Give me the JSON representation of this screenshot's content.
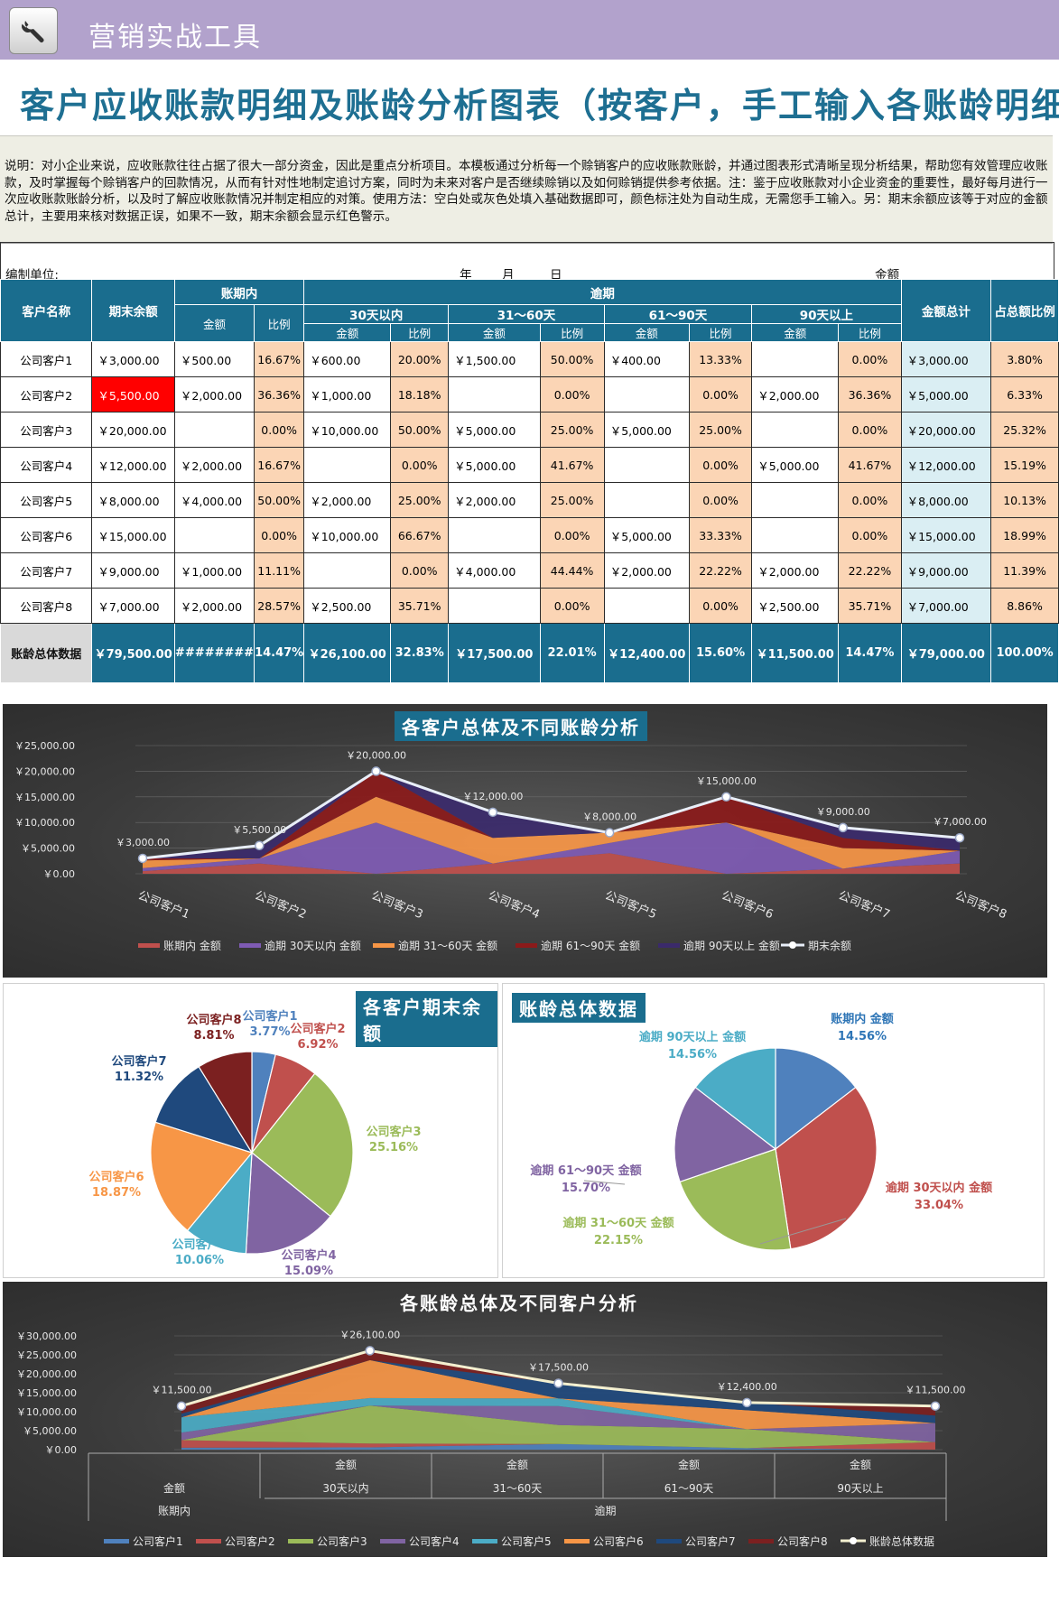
{
  "header": {
    "app_title": "营销实战工具",
    "app_icon": "wrench-icon"
  },
  "page_title": "客户应收账款明细及账龄分析图表（按客户，手工输入各账龄明细）",
  "description": "说明：对小企业来说，应收账款往往占据了很大一部分资金，因此是重点分析项目。本模板通过分析每一个赊销客户的应收账款账龄，并通过图表形式清晰呈现分析结果，帮助您有效管理应收账款，及时掌握每个赊销客户的回款情况，从而有针对性地制定追讨方案，同时为未来对客户是否继续赊销以及如何赊销提供参考依据。注：鉴于应收账款对小企业资金的重要性，最好每月进行一次应收账款账龄分析，以及时了解应收账款情况并制定相应的对策。使用方法：空白处或灰色处填入基础数据即可，颜色标注处为自动生成，无需您手工输入。另：期末余额应该等于对应的金额总计，主要用来核对数据正误，如果不一致，期末余额会显示红色警示。",
  "unit_row": {
    "unit_label": "编制单位:",
    "year": "年",
    "month": "月",
    "day": "日",
    "amount_label": "金额"
  },
  "table": {
    "headers": {
      "customer": "客户名称",
      "ending_balance": "期末余额",
      "in_period": "账期内",
      "overdue": "逾期",
      "b1": "30天以内",
      "b2": "31～60天",
      "b3": "61～90天",
      "b4": "90天以上",
      "amount": "金额",
      "ratio": "比例",
      "total": "金额总计",
      "share": "占总额比例"
    },
    "rows": [
      {
        "name": "公司客户1",
        "bal": "￥3,000.00",
        "a0": "￥500.00",
        "p0": "16.67%",
        "a1": "￥600.00",
        "p1": "20.00%",
        "a2": "￥1,500.00",
        "p2": "50.00%",
        "a3": "￥400.00",
        "p3": "13.33%",
        "a4": "",
        "p4": "0.00%",
        "tot": "￥3,000.00",
        "sh": "3.80%"
      },
      {
        "name": "公司客户2",
        "bal": "￥5,500.00",
        "a0": "￥2,000.00",
        "p0": "36.36%",
        "a1": "￥1,000.00",
        "p1": "18.18%",
        "a2": "",
        "p2": "0.00%",
        "a3": "",
        "p3": "0.00%",
        "a4": "￥2,000.00",
        "p4": "36.36%",
        "tot": "￥5,000.00",
        "sh": "6.33%"
      },
      {
        "name": "公司客户3",
        "bal": "￥20,000.00",
        "a0": "",
        "p0": "0.00%",
        "a1": "￥10,000.00",
        "p1": "50.00%",
        "a2": "￥5,000.00",
        "p2": "25.00%",
        "a3": "￥5,000.00",
        "p3": "25.00%",
        "a4": "",
        "p4": "0.00%",
        "tot": "￥20,000.00",
        "sh": "25.32%"
      },
      {
        "name": "公司客户4",
        "bal": "￥12,000.00",
        "a0": "￥2,000.00",
        "p0": "16.67%",
        "a1": "",
        "p1": "0.00%",
        "a2": "￥5,000.00",
        "p2": "41.67%",
        "a3": "",
        "p3": "0.00%",
        "a4": "￥5,000.00",
        "p4": "41.67%",
        "tot": "￥12,000.00",
        "sh": "15.19%"
      },
      {
        "name": "公司客户5",
        "bal": "￥8,000.00",
        "a0": "￥4,000.00",
        "p0": "50.00%",
        "a1": "￥2,000.00",
        "p1": "25.00%",
        "a2": "￥2,000.00",
        "p2": "25.00%",
        "a3": "",
        "p3": "0.00%",
        "a4": "",
        "p4": "0.00%",
        "tot": "￥8,000.00",
        "sh": "10.13%"
      },
      {
        "name": "公司客户6",
        "bal": "￥15,000.00",
        "a0": "",
        "p0": "0.00%",
        "a1": "￥10,000.00",
        "p1": "66.67%",
        "a2": "",
        "p2": "0.00%",
        "a3": "￥5,000.00",
        "p3": "33.33%",
        "a4": "",
        "p4": "0.00%",
        "tot": "￥15,000.00",
        "sh": "18.99%"
      },
      {
        "name": "公司客户7",
        "bal": "￥9,000.00",
        "a0": "￥1,000.00",
        "p0": "11.11%",
        "a1": "",
        "p1": "0.00%",
        "a2": "￥4,000.00",
        "p2": "44.44%",
        "a3": "￥2,000.00",
        "p3": "22.22%",
        "a4": "￥2,000.00",
        "p4": "22.22%",
        "tot": "￥9,000.00",
        "sh": "11.39%"
      },
      {
        "name": "公司客户8",
        "bal": "￥7,000.00",
        "a0": "￥2,000.00",
        "p0": "28.57%",
        "a1": "￥2,500.00",
        "p1": "35.71%",
        "a2": "",
        "p2": "0.00%",
        "a3": "",
        "p3": "0.00%",
        "a4": "￥2,500.00",
        "p4": "35.71%",
        "tot": "￥7,000.00",
        "sh": "8.86%"
      }
    ],
    "summary": {
      "name": "账龄总体数据",
      "bal": "￥79,500.00",
      "a0": "########",
      "p0": "14.47%",
      "a1": "￥26,100.00",
      "p1": "32.83%",
      "a2": "￥17,500.00",
      "p2": "22.01%",
      "a3": "￥12,400.00",
      "p3": "15.60%",
      "a4": "￥11,500.00",
      "p4": "14.47%",
      "tot": "￥79,000.00",
      "sh": "100.00%"
    },
    "warning_color": "#ff0000"
  },
  "chart_data": [
    {
      "type": "area",
      "title": "各客户总体及不同账龄分析",
      "categories": [
        "公司客户1",
        "公司客户2",
        "公司客户3",
        "公司客户4",
        "公司客户5",
        "公司客户6",
        "公司客户7",
        "公司客户8"
      ],
      "ylim": [
        0,
        25000
      ],
      "yticks": [
        "￥25,000.00",
        "￥20,000.00",
        "￥15,000.00",
        "￥10,000.00",
        "￥5,000.00",
        "￥0.00"
      ],
      "series": [
        {
          "name": "账期内 金额",
          "color": "#c0504d",
          "values": [
            500,
            2000,
            0,
            2000,
            4000,
            0,
            1000,
            2000
          ]
        },
        {
          "name": "逾期 30天以内 金额",
          "color": "#7f5bb4",
          "values": [
            600,
            1000,
            10000,
            0,
            2000,
            10000,
            0,
            2500
          ]
        },
        {
          "name": "逾期 31～60天 金额",
          "color": "#f79646",
          "values": [
            1500,
            0,
            5000,
            5000,
            2000,
            0,
            4000,
            0
          ]
        },
        {
          "name": "逾期 61～90天 金额",
          "color": "#8b1a1a",
          "values": [
            400,
            0,
            5000,
            0,
            0,
            5000,
            2000,
            0
          ]
        },
        {
          "name": "逾期 90天以上 金额",
          "color": "#3b2a6b",
          "values": [
            0,
            2000,
            0,
            5000,
            0,
            0,
            2000,
            2500
          ]
        }
      ],
      "line": {
        "name": "期末余额",
        "color": "#e8eef8",
        "values": [
          3000,
          5500,
          20000,
          12000,
          8000,
          15000,
          9000,
          7000
        ],
        "labels": [
          "￥3,000.00",
          "￥5,500.00",
          "￥20,000.00",
          "￥12,000.00",
          "￥8,000.00",
          "￥15,000.00",
          "￥9,000.00",
          "￥7,000.00"
        ]
      }
    },
    {
      "type": "pie",
      "title": "各客户期末余额",
      "labels": [
        "公司客户1",
        "公司客户2",
        "公司客户3",
        "公司客户4",
        "公司客户5",
        "公司客户6",
        "公司客户7",
        "公司客户8"
      ],
      "values": [
        3.77,
        6.92,
        25.16,
        15.09,
        10.06,
        18.87,
        11.32,
        8.81
      ],
      "pct_labels": [
        "3.77%",
        "6.92%",
        "25.16%",
        "15.09%",
        "10.06%",
        "18.87%",
        "11.32%",
        "8.81%"
      ],
      "colors": [
        "#4f81bd",
        "#c0504d",
        "#9bbb59",
        "#8064a2",
        "#4bacc6",
        "#f79646",
        "#1f497d",
        "#7b2020"
      ]
    },
    {
      "type": "pie",
      "title": "账龄总体数据",
      "labels": [
        "账期内 金额",
        "逾期 30天以内 金额",
        "逾期 31～60天 金额",
        "逾期 61～90天 金额",
        "逾期 90天以上 金额"
      ],
      "values": [
        14.56,
        33.04,
        22.15,
        15.7,
        14.56
      ],
      "pct_labels": [
        "14.56%",
        "33.04%",
        "22.15%",
        "15.70%",
        "14.56%"
      ],
      "colors": [
        "#4f81bd",
        "#c0504d",
        "#9bbb59",
        "#8064a2",
        "#4bacc6"
      ]
    },
    {
      "type": "area",
      "title": "各账龄总体及不同客户分析",
      "categories": [
        [
          "金额",
          "账期内"
        ],
        [
          "金额",
          "30天以内"
        ],
        [
          "金额",
          "31～60天"
        ],
        [
          "金额",
          "61～90天"
        ],
        [
          "金额",
          "90天以上"
        ]
      ],
      "group_label": "逾期",
      "ylim": [
        0,
        30000
      ],
      "yticks": [
        "￥30,000.00",
        "￥25,000.00",
        "￥20,000.00",
        "￥15,000.00",
        "￥10,000.00",
        "￥5,000.00",
        "￥0.00"
      ],
      "series": [
        {
          "name": "公司客户1",
          "color": "#4f81bd",
          "values": [
            500,
            600,
            1500,
            400,
            0
          ]
        },
        {
          "name": "公司客户2",
          "color": "#c0504d",
          "values": [
            2000,
            1000,
            0,
            0,
            2000
          ]
        },
        {
          "name": "公司客户3",
          "color": "#9bbb59",
          "values": [
            0,
            10000,
            5000,
            5000,
            0
          ]
        },
        {
          "name": "公司客户4",
          "color": "#8064a2",
          "values": [
            2000,
            0,
            5000,
            0,
            5000
          ]
        },
        {
          "name": "公司客户5",
          "color": "#4bacc6",
          "values": [
            4000,
            2000,
            2000,
            0,
            0
          ]
        },
        {
          "name": "公司客户6",
          "color": "#f79646",
          "values": [
            0,
            10000,
            0,
            5000,
            0
          ]
        },
        {
          "name": "公司客户7",
          "color": "#1f497d",
          "values": [
            1000,
            0,
            4000,
            2000,
            2000
          ]
        },
        {
          "name": "公司客户8",
          "color": "#7b2020",
          "values": [
            2000,
            2500,
            0,
            0,
            2500
          ]
        }
      ],
      "line": {
        "name": "账龄总体数据",
        "color": "#f4f0d0",
        "values": [
          11500,
          26100,
          17500,
          12400,
          11500
        ],
        "labels": [
          "￥11,500.00",
          "￥26,100.00",
          "￥17,500.00",
          "￥12,400.00",
          "￥11,500.00"
        ]
      }
    }
  ]
}
